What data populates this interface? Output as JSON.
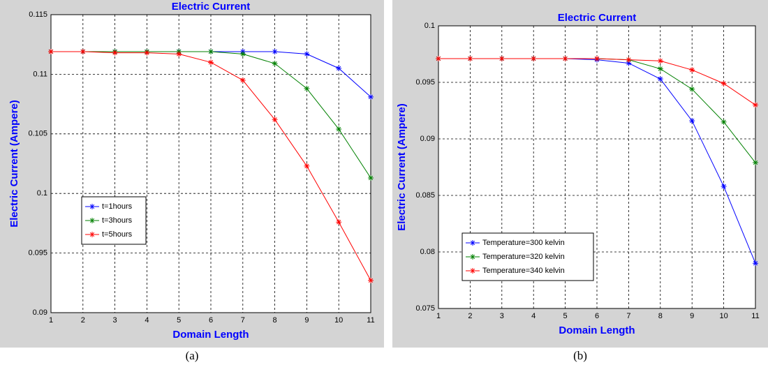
{
  "chart_data": [
    {
      "type": "line",
      "title": "Electric Current",
      "xlabel": "Domain Length",
      "ylabel": "Electric Current (Ampere)",
      "caption": "(a)",
      "x": [
        1,
        2,
        3,
        4,
        5,
        6,
        7,
        8,
        9,
        10,
        11
      ],
      "xlim": [
        1,
        11
      ],
      "xticks": [
        1,
        2,
        3,
        4,
        5,
        6,
        7,
        8,
        9,
        10,
        11
      ],
      "ylim": [
        0.09,
        0.115
      ],
      "yticks": [
        0.09,
        0.095,
        0.1,
        0.105,
        0.11,
        0.115
      ],
      "grid": true,
      "legend": "lower left",
      "series": [
        {
          "name": "t=1hours",
          "color": "#0000ff",
          "values": [
            0.1119,
            0.1119,
            0.1119,
            0.1119,
            0.1119,
            0.1119,
            0.1119,
            0.1119,
            0.1117,
            0.1105,
            0.1081
          ]
        },
        {
          "name": "t=3hours",
          "color": "#008000",
          "values": [
            0.1119,
            0.1119,
            0.1119,
            0.1119,
            0.1119,
            0.1119,
            0.1117,
            0.1109,
            0.1088,
            0.1054,
            0.1013
          ]
        },
        {
          "name": "t=5hours",
          "color": "#ff0000",
          "values": [
            0.1119,
            0.1119,
            0.1118,
            0.1118,
            0.1117,
            0.111,
            0.1095,
            0.1062,
            0.1023,
            0.0976,
            0.0927
          ]
        }
      ]
    },
    {
      "type": "line",
      "title": "Electric Current",
      "xlabel": "Domain Length",
      "ylabel": "Electric Current (Ampere)",
      "caption": "(b)",
      "x": [
        1,
        2,
        3,
        4,
        5,
        6,
        7,
        8,
        9,
        10,
        11
      ],
      "xlim": [
        1,
        11
      ],
      "xticks": [
        1,
        2,
        3,
        4,
        5,
        6,
        7,
        8,
        9,
        10,
        11
      ],
      "ylim": [
        0.075,
        0.1
      ],
      "yticks": [
        0.075,
        0.08,
        0.085,
        0.09,
        0.095,
        0.1
      ],
      "grid": true,
      "legend": "lower left",
      "series": [
        {
          "name": "Temperature=300 kelvin",
          "color": "#0000ff",
          "values": [
            0.0971,
            0.0971,
            0.0971,
            0.0971,
            0.0971,
            0.097,
            0.0967,
            0.0953,
            0.0916,
            0.0858,
            0.079
          ]
        },
        {
          "name": "Temperature=320 kelvin",
          "color": "#008000",
          "values": [
            0.0971,
            0.0971,
            0.0971,
            0.0971,
            0.0971,
            0.0971,
            0.097,
            0.0962,
            0.0944,
            0.0915,
            0.0879
          ]
        },
        {
          "name": "Temperature=340 kelvin",
          "color": "#ff0000",
          "values": [
            0.0971,
            0.0971,
            0.0971,
            0.0971,
            0.0971,
            0.0971,
            0.097,
            0.0969,
            0.0961,
            0.0949,
            0.093
          ]
        }
      ]
    }
  ]
}
